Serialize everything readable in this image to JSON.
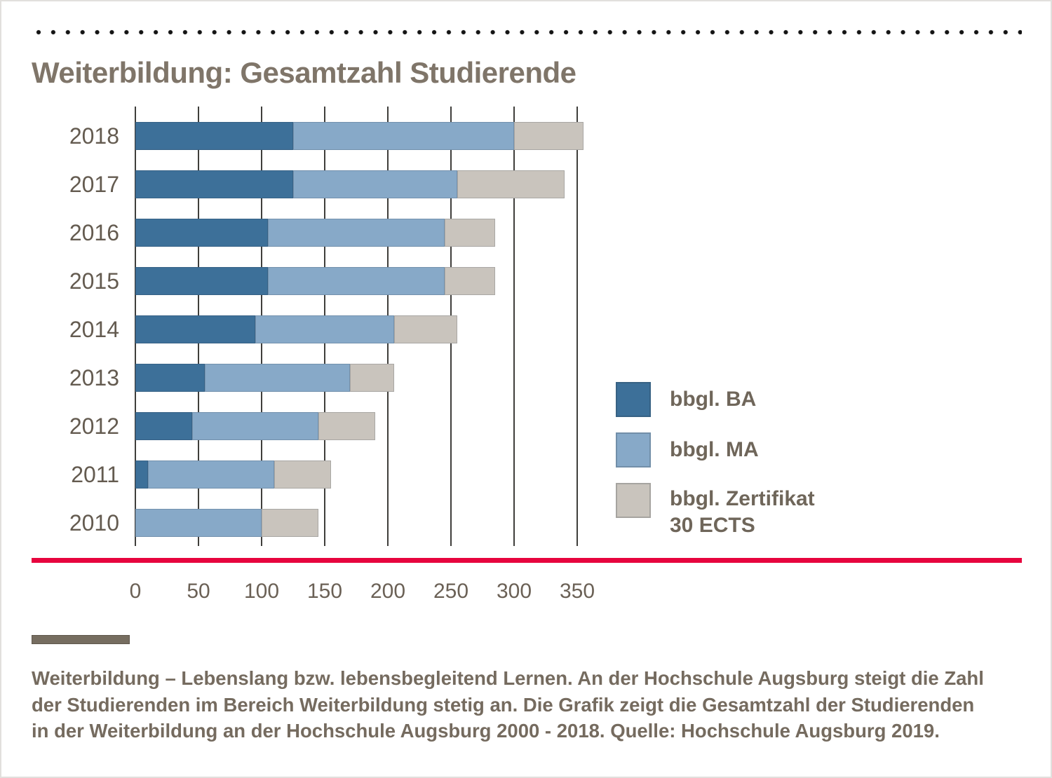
{
  "title": "Weiterbildung: Gesamtzahl Studierende",
  "chart_data": {
    "type": "bar",
    "orientation": "horizontal",
    "stacked": true,
    "title": "Weiterbildung: Gesamtzahl Studierende",
    "categories": [
      "2018",
      "2017",
      "2016",
      "2015",
      "2014",
      "2013",
      "2012",
      "2011",
      "2010"
    ],
    "series": [
      {
        "name": "bbgl. BA",
        "color": "#3d7099",
        "values": [
          125,
          125,
          105,
          105,
          95,
          55,
          45,
          10,
          0
        ]
      },
      {
        "name": "bbgl. MA",
        "color": "#87a9c8",
        "values": [
          175,
          130,
          140,
          140,
          110,
          115,
          100,
          100,
          100
        ]
      },
      {
        "name": "bbgl. Zertifikat 30 ECTS",
        "color": "#c9c4bd",
        "values": [
          55,
          85,
          40,
          40,
          50,
          35,
          45,
          45,
          45
        ]
      }
    ],
    "totals": [
      355,
      340,
      285,
      285,
      255,
      205,
      190,
      155,
      145
    ],
    "x_axis": {
      "min": 0,
      "max": 350,
      "tick_step": 50,
      "ticks": [
        "0",
        "50",
        "100",
        "150",
        "200",
        "250",
        "300",
        "350"
      ]
    },
    "grid": "vertical",
    "legend_position": "right"
  },
  "legend": {
    "items": [
      {
        "label": "bbgl. BA",
        "label2": "",
        "color": "#3d7099"
      },
      {
        "label": "bbgl. MA",
        "label2": "",
        "color": "#87a9c8"
      },
      {
        "label": "bbgl. Zertifikat",
        "label2": "30 ECTS",
        "color": "#c9c4bd"
      }
    ]
  },
  "caption": {
    "lines": [
      "Weiterbildung – Lebenslang bzw. lebensbegleitend Lernen. An der Hochschule Augsburg steigt die Zahl",
      "der Studierenden im Bereich Weiterbildung stetig an. Die Grafik zeigt die Gesamtzahl der Studierenden",
      "in der Weiterbildung an der Hochschule Augsburg 2000 - 2018. Quelle: Hochschule Augsburg 2019."
    ]
  },
  "colors": {
    "title_text": "#7f7569",
    "axis_text": "#6b6156",
    "year_text": "#645b50",
    "caption_text": "#756b5f",
    "gridline": "#3f3e3b",
    "red_line": "#e7043e",
    "dots": "#141414",
    "caption_marker": "#766d60"
  }
}
